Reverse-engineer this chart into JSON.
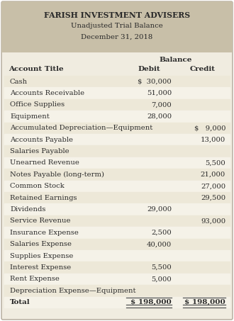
{
  "title_line1": "FARISH INVESTMENT ADVISERS",
  "title_line2": "Unadjusted Trial Balance",
  "title_line3": "December 31, 2018",
  "header_bg": "#c8bfa8",
  "body_bg": "#f0ece0",
  "row_bg_even": "#ede8d8",
  "row_bg_odd": "#f5f2e8",
  "outer_bg": "#ffffff",
  "border_color": "#b0a898",
  "col_header_balance": "Balance",
  "col_header_debit": "Debit",
  "col_header_credit": "Credit",
  "col_account": "Account Title",
  "rows": [
    {
      "account": "Cash",
      "debit": "$  30,000",
      "credit": ""
    },
    {
      "account": "Accounts Receivable",
      "debit": "51,000",
      "credit": ""
    },
    {
      "account": "Office Supplies",
      "debit": "7,000",
      "credit": ""
    },
    {
      "account": "Equipment",
      "debit": "28,000",
      "credit": ""
    },
    {
      "account": "Accumulated Depreciation—Equipment",
      "debit": "",
      "credit": "$   9,000"
    },
    {
      "account": "Accounts Payable",
      "debit": "",
      "credit": "13,000"
    },
    {
      "account": "Salaries Payable",
      "debit": "",
      "credit": ""
    },
    {
      "account": "Unearned Revenue",
      "debit": "",
      "credit": "5,500"
    },
    {
      "account": "Notes Payable (long-term)",
      "debit": "",
      "credit": "21,000"
    },
    {
      "account": "Common Stock",
      "debit": "",
      "credit": "27,000"
    },
    {
      "account": "Retained Earnings",
      "debit": "",
      "credit": "29,500"
    },
    {
      "account": "Dividends",
      "debit": "29,000",
      "credit": ""
    },
    {
      "account": "Service Revenue",
      "debit": "",
      "credit": "93,000"
    },
    {
      "account": "Insurance Expense",
      "debit": "2,500",
      "credit": ""
    },
    {
      "account": "Salaries Expense",
      "debit": "40,000",
      "credit": ""
    },
    {
      "account": "Supplies Expense",
      "debit": "",
      "credit": ""
    },
    {
      "account": "Interest Expense",
      "debit": "5,500",
      "credit": ""
    },
    {
      "account": "Rent Expense",
      "debit": "5,000",
      "credit": ""
    },
    {
      "account": "Depreciation Expense—Equipment",
      "debit": "",
      "credit": ""
    },
    {
      "account": "Total",
      "debit": "$ 198,000",
      "credit": "$ 198,000"
    }
  ],
  "title_fontsize": 7.8,
  "header_fontsize": 7.5,
  "row_fontsize": 7.2,
  "total_fontsize": 7.5
}
